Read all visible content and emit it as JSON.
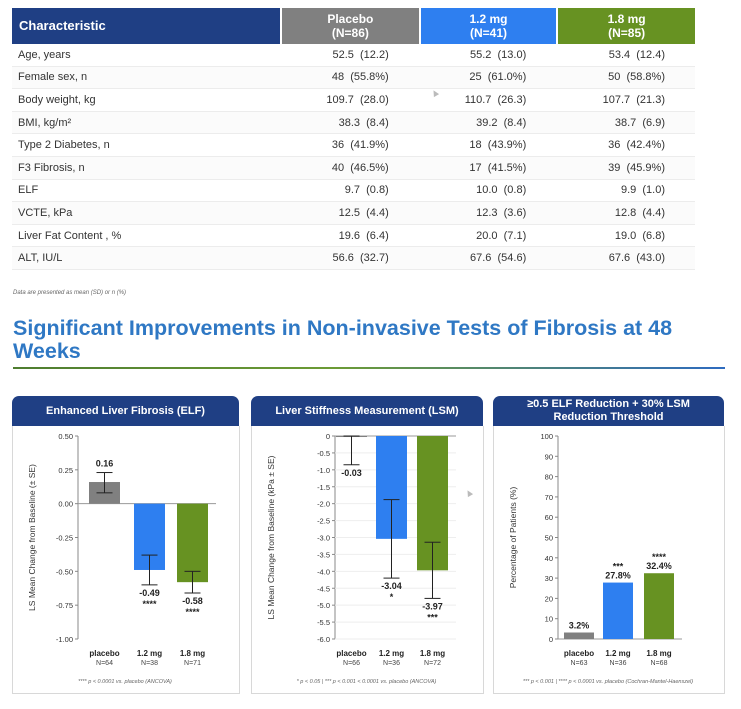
{
  "table": {
    "headers": [
      {
        "line1": "Characteristic",
        "line2": ""
      },
      {
        "line1": "Placebo",
        "line2": "(N=86)"
      },
      {
        "line1": "1.2 mg",
        "line2": "(N=41)"
      },
      {
        "line1": "1.8 mg",
        "line2": "(N=85)"
      }
    ],
    "rows": [
      {
        "label": "Age, years",
        "cells": [
          "52.5  (12.2)",
          "55.2  (13.0)",
          "53.4  (12.4)"
        ]
      },
      {
        "label": "Female sex, n",
        "cells": [
          "48  (55.8%)",
          "25  (61.0%)",
          "50  (58.8%)"
        ]
      },
      {
        "label": "Body weight, kg",
        "cells": [
          "109.7  (28.0)",
          "110.7  (26.3)",
          "107.7  (21.3)"
        ]
      },
      {
        "label": "BMI,  kg/m²",
        "cells": [
          "38.3  (8.4)",
          "39.2  (8.4)",
          "38.7  (6.9)"
        ]
      },
      {
        "label": "Type 2 Diabetes, n",
        "cells": [
          "36  (41.9%)",
          "18  (43.9%)",
          "36  (42.4%)"
        ]
      },
      {
        "label": "F3 Fibrosis, n",
        "cells": [
          "40  (46.5%)",
          "17  (41.5%)",
          "39  (45.9%)"
        ]
      },
      {
        "label": "ELF",
        "cells": [
          "9.7  (0.8)",
          "10.0  (0.8)",
          "9.9  (1.0)"
        ]
      },
      {
        "label": "VCTE, kPa",
        "cells": [
          "12.5  (4.4)",
          "12.3  (3.6)",
          "12.8  (4.4)"
        ]
      },
      {
        "label": "Liver Fat Content , %",
        "cells": [
          "19.6  (6.4)",
          "20.0  (7.1)",
          "19.0  (6.8)"
        ]
      },
      {
        "label": "ALT, IU/L",
        "cells": [
          "56.6  (32.7)",
          "67.6  (54.6)",
          "67.6  (43.0)"
        ]
      }
    ],
    "note": "Data are presented as mean (SD) or n (%)"
  },
  "heading": "Significant Improvements in Non-invasive Tests of Fibrosis at 48 Weeks",
  "colors": {
    "navy": "#1f3f84",
    "placebo": "#808080",
    "dose12": "#2e7ff0",
    "dose18": "#679222",
    "heading": "#2f78c4"
  },
  "chart_data": [
    {
      "type": "bar",
      "title": "Enhanced Liver Fibrosis (ELF)",
      "ylabel": "LS Mean Change from Baseline (± SE)",
      "ylim": [
        -1.0,
        0.5
      ],
      "yticks": [
        "0.50",
        "0.25",
        "0.00",
        "-0.25",
        "-0.50",
        "-0.75",
        "-1.00"
      ],
      "tickValues": [
        0.5,
        0.25,
        0,
        -0.25,
        -0.5,
        -0.75,
        -1.0
      ],
      "categories": [
        "placebo",
        "1.2 mg",
        "1.8 mg"
      ],
      "n": [
        "N=64",
        "N=38",
        "N=71"
      ],
      "values": [
        0.16,
        -0.49,
        -0.58
      ],
      "errLow": [
        0.08,
        -0.6,
        -0.66
      ],
      "errHigh": [
        0.23,
        -0.38,
        -0.5
      ],
      "labels": [
        "0.16",
        "-0.49",
        "-0.58"
      ],
      "stars": [
        "",
        "****",
        "****"
      ],
      "footnote": "**** p < 0.0001 vs. placebo (ANCOVA)"
    },
    {
      "type": "bar",
      "title": "Liver Stiffness Measurement (LSM)",
      "ylabel": "LS Mean Change from Baseline (kPa ± SE)",
      "ylim": [
        -6.0,
        0.0
      ],
      "yticks": [
        "0",
        "-0.5",
        "-1.0",
        "-1.5",
        "-2.0",
        "-2.5",
        "-3.0",
        "-3.5",
        "-4.0",
        "-4.5",
        "-5.0",
        "-5.5",
        "-6.0"
      ],
      "tickValues": [
        0,
        -0.5,
        -1.0,
        -1.5,
        -2.0,
        -2.5,
        -3.0,
        -3.5,
        -4.0,
        -4.5,
        -5.0,
        -5.5,
        -6.0
      ],
      "categories": [
        "placebo",
        "1.2 mg",
        "1.8 mg"
      ],
      "n": [
        "N=66",
        "N=36",
        "N=72"
      ],
      "values": [
        -0.03,
        -3.04,
        -3.97
      ],
      "errLow": [
        -0.85,
        -4.2,
        -4.8
      ],
      "errHigh": [
        0.0,
        -1.88,
        -3.14
      ],
      "labels": [
        "-0.03",
        "-3.04",
        "-3.97"
      ],
      "stars": [
        "",
        "*",
        "***"
      ],
      "footnote": "* p < 0.05 | *** p < 0.001 < 0.0001 vs. placebo (ANCOVA)"
    },
    {
      "type": "bar",
      "title": "≥0.5 ELF Reduction + 30% LSM Reduction Threshold",
      "ylabel": "Percentage of Patients (%)",
      "ylim": [
        0,
        100
      ],
      "yticks": [
        "100",
        "90",
        "80",
        "70",
        "60",
        "50",
        "40",
        "30",
        "20",
        "10",
        "0"
      ],
      "tickValues": [
        100,
        90,
        80,
        70,
        60,
        50,
        40,
        30,
        20,
        10,
        0
      ],
      "categories": [
        "placebo",
        "1.2 mg",
        "1.8 mg"
      ],
      "n": [
        "N=63",
        "N=36",
        "N=68"
      ],
      "values": [
        3.2,
        27.8,
        32.4
      ],
      "labels": [
        "3.2%",
        "27.8%",
        "32.4%"
      ],
      "stars": [
        "",
        "***",
        "****"
      ],
      "footnote": "*** p < 0.001 | **** p < 0.0001 vs. placebo (Cochran-Mantel-Haenszel)"
    }
  ]
}
